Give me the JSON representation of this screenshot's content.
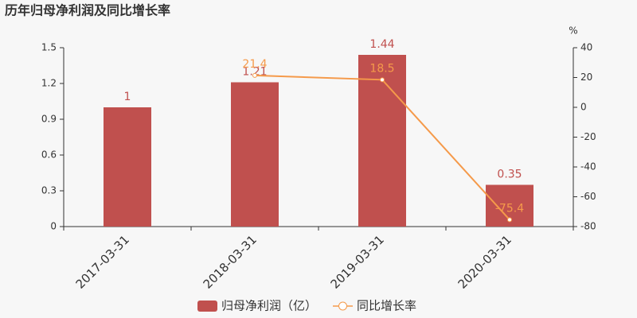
{
  "chart_data": {
    "type": "bar-line",
    "title": "历年归母净利润及同比增长率",
    "categories": [
      "2017-03-31",
      "2018-03-31",
      "2019-03-31",
      "2020-03-31"
    ],
    "series": [
      {
        "name": "归母净利润（亿）",
        "type": "bar",
        "color": "#c0504e",
        "values": [
          1,
          1.21,
          1.44,
          0.35
        ]
      },
      {
        "name": "同比增长率",
        "type": "line",
        "axis": "y2",
        "color": "#f59a4a",
        "values": [
          null,
          21.4,
          18.5,
          -75.4
        ]
      }
    ],
    "ylim": [
      0,
      1.5
    ],
    "yticks": [
      0,
      0.3,
      0.6,
      0.9,
      1.2,
      1.5
    ],
    "y2label": "%",
    "y2lim": [
      -80,
      40
    ],
    "y2ticks": [
      -80,
      -60,
      -40,
      -20,
      0,
      20,
      40
    ],
    "grid": false,
    "legend": "bottom"
  }
}
